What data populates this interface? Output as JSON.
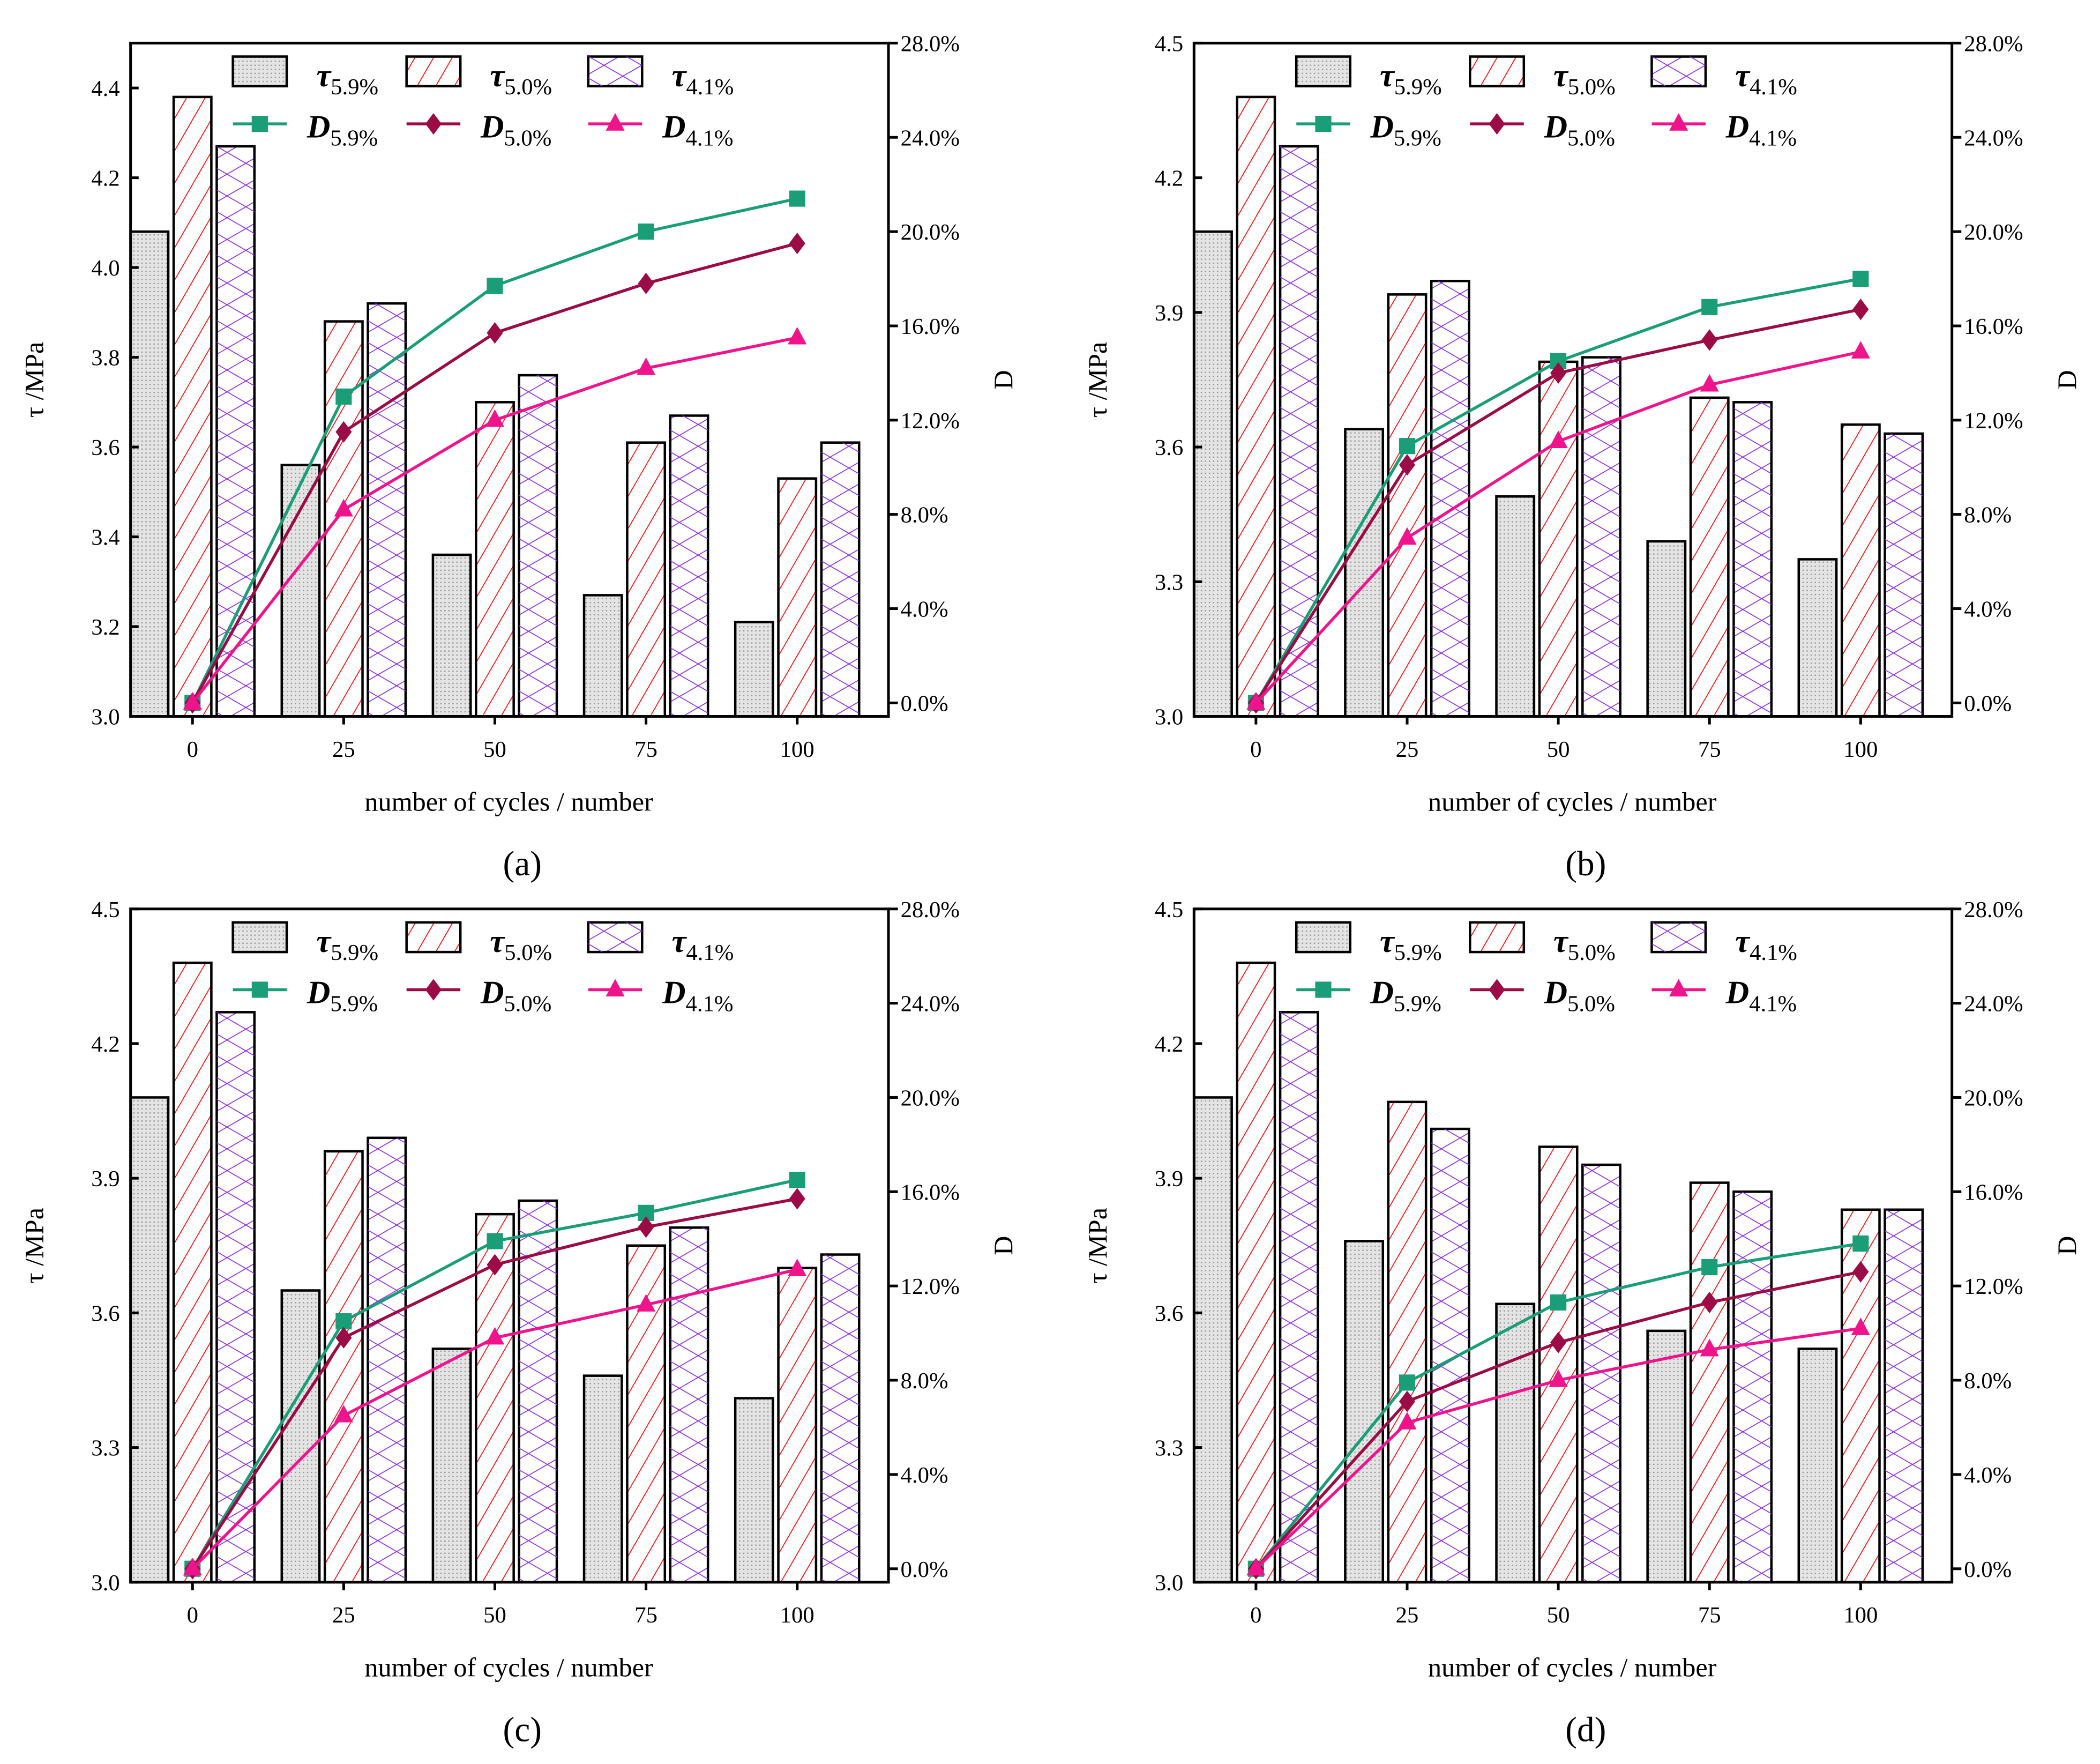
{
  "colors": {
    "d59": "#1a9e77",
    "d50": "#9b0b45",
    "d41": "#f0148c",
    "t59": "#bdbdbd",
    "t50": "#ff0000",
    "t41": "#8a2be2"
  },
  "legend": {
    "tau_symbol": "τ",
    "d_symbol": "D",
    "subs": [
      "5.9%",
      "5.0%",
      "4.1%"
    ]
  },
  "chart_data": [
    {
      "type": "bar+line",
      "panel_label": "(a)",
      "xlabel": "number of cycles / number",
      "ylabel": "τ /MPa",
      "y2label": "D",
      "categories": [
        "0",
        "25",
        "50",
        "75",
        "100"
      ],
      "ylim": [
        3.0,
        4.5
      ],
      "yticks": [
        "3.0",
        "3.2",
        "3.4",
        "3.6",
        "3.8",
        "4.0",
        "4.2",
        "4.4"
      ],
      "y2lim_percent": [
        0,
        28
      ],
      "y2ticks": [
        "0.0%",
        "4.0%",
        "8.0%",
        "12.0%",
        "16.0%",
        "20.0%",
        "24.0%",
        "28.0%"
      ],
      "bars": [
        {
          "name": "τ5.9%",
          "values": [
            4.08,
            3.56,
            3.36,
            3.27,
            3.21
          ]
        },
        {
          "name": "τ5.0%",
          "values": [
            4.38,
            3.88,
            3.7,
            3.61,
            3.53
          ]
        },
        {
          "name": "τ4.1%",
          "values": [
            4.27,
            3.92,
            3.76,
            3.67,
            3.61
          ]
        }
      ],
      "lines": [
        {
          "name": "D5.9%",
          "marker": "square",
          "values": [
            0,
            13.0,
            17.7,
            20.0,
            21.4
          ]
        },
        {
          "name": "D5.0%",
          "marker": "diamond",
          "values": [
            0,
            11.5,
            15.7,
            17.8,
            19.5
          ]
        },
        {
          "name": "D4.1%",
          "marker": "triangle",
          "values": [
            0,
            8.2,
            12.0,
            14.2,
            15.5
          ]
        }
      ]
    },
    {
      "type": "bar+line",
      "panel_label": "(b)",
      "xlabel": "number of cycles / number",
      "ylabel": "τ /MPa",
      "y2label": "D",
      "categories": [
        "0",
        "25",
        "50",
        "75",
        "100"
      ],
      "ylim": [
        3.0,
        4.5
      ],
      "yticks": [
        "3.0",
        "3.3",
        "3.6",
        "3.9",
        "4.2",
        "4.5"
      ],
      "y2lim_percent": [
        0,
        28
      ],
      "y2ticks": [
        "0.0%",
        "4.0%",
        "8.0%",
        "12.0%",
        "16.0%",
        "20.0%",
        "24.0%",
        "28.0%"
      ],
      "bars": [
        {
          "name": "τ5.9%",
          "values": [
            4.08,
            3.64,
            3.49,
            3.39,
            3.35
          ]
        },
        {
          "name": "τ5.0%",
          "values": [
            4.38,
            3.94,
            3.79,
            3.71,
            3.65
          ]
        },
        {
          "name": "τ4.1%",
          "values": [
            4.27,
            3.97,
            3.8,
            3.7,
            3.63
          ]
        }
      ],
      "lines": [
        {
          "name": "D5.9%",
          "marker": "square",
          "values": [
            0,
            10.9,
            14.5,
            16.8,
            18.0
          ]
        },
        {
          "name": "D5.0%",
          "marker": "diamond",
          "values": [
            0,
            10.1,
            14.0,
            15.4,
            16.7
          ]
        },
        {
          "name": "D4.1%",
          "marker": "triangle",
          "values": [
            0,
            7.0,
            11.1,
            13.5,
            14.9
          ]
        }
      ]
    },
    {
      "type": "bar+line",
      "panel_label": "(c)",
      "xlabel": "number of cycles / number",
      "ylabel": "τ /MPa",
      "y2label": "D",
      "categories": [
        "0",
        "25",
        "50",
        "75",
        "100"
      ],
      "ylim": [
        3.0,
        4.5
      ],
      "yticks": [
        "3.0",
        "3.3",
        "3.6",
        "3.9",
        "4.2",
        "4.5"
      ],
      "y2lim_percent": [
        0,
        28
      ],
      "y2ticks": [
        "0.0%",
        "4.0%",
        "8.0%",
        "12.0%",
        "16.0%",
        "20.0%",
        "24.0%",
        "28.0%"
      ],
      "bars": [
        {
          "name": "τ5.9%",
          "values": [
            4.08,
            3.65,
            3.52,
            3.46,
            3.41
          ]
        },
        {
          "name": "τ5.0%",
          "values": [
            4.38,
            3.96,
            3.82,
            3.75,
            3.7
          ]
        },
        {
          "name": "τ4.1%",
          "values": [
            4.27,
            3.99,
            3.85,
            3.79,
            3.73
          ]
        }
      ],
      "lines": [
        {
          "name": "D5.9%",
          "marker": "square",
          "values": [
            0,
            10.5,
            13.9,
            15.1,
            16.5
          ]
        },
        {
          "name": "D5.0%",
          "marker": "diamond",
          "values": [
            0,
            9.8,
            12.9,
            14.5,
            15.7
          ]
        },
        {
          "name": "D4.1%",
          "marker": "triangle",
          "values": [
            0,
            6.5,
            9.8,
            11.2,
            12.7
          ]
        }
      ]
    },
    {
      "type": "bar+line",
      "panel_label": "(d)",
      "xlabel": "number of cycles / number",
      "ylabel": "τ /MPa",
      "y2label": "D",
      "categories": [
        "0",
        "25",
        "50",
        "75",
        "100"
      ],
      "ylim": [
        3.0,
        4.5
      ],
      "yticks": [
        "3.0",
        "3.3",
        "3.6",
        "3.9",
        "4.2",
        "4.5"
      ],
      "y2lim_percent": [
        0,
        28
      ],
      "y2ticks": [
        "0.0%",
        "4.0%",
        "8.0%",
        "12.0%",
        "16.0%",
        "20.0%",
        "24.0%",
        "28.0%"
      ],
      "bars": [
        {
          "name": "τ5.9%",
          "values": [
            4.08,
            3.76,
            3.62,
            3.56,
            3.52
          ]
        },
        {
          "name": "τ5.0%",
          "values": [
            4.38,
            4.07,
            3.97,
            3.89,
            3.83
          ]
        },
        {
          "name": "τ4.1%",
          "values": [
            4.27,
            4.01,
            3.93,
            3.87,
            3.83
          ]
        }
      ],
      "lines": [
        {
          "name": "D5.9%",
          "marker": "square",
          "values": [
            0,
            7.9,
            11.3,
            12.8,
            13.8
          ]
        },
        {
          "name": "D5.0%",
          "marker": "diamond",
          "values": [
            0,
            7.1,
            9.6,
            11.3,
            12.6
          ]
        },
        {
          "name": "D4.1%",
          "marker": "triangle",
          "values": [
            0,
            6.2,
            8.0,
            9.3,
            10.2
          ]
        }
      ]
    }
  ]
}
